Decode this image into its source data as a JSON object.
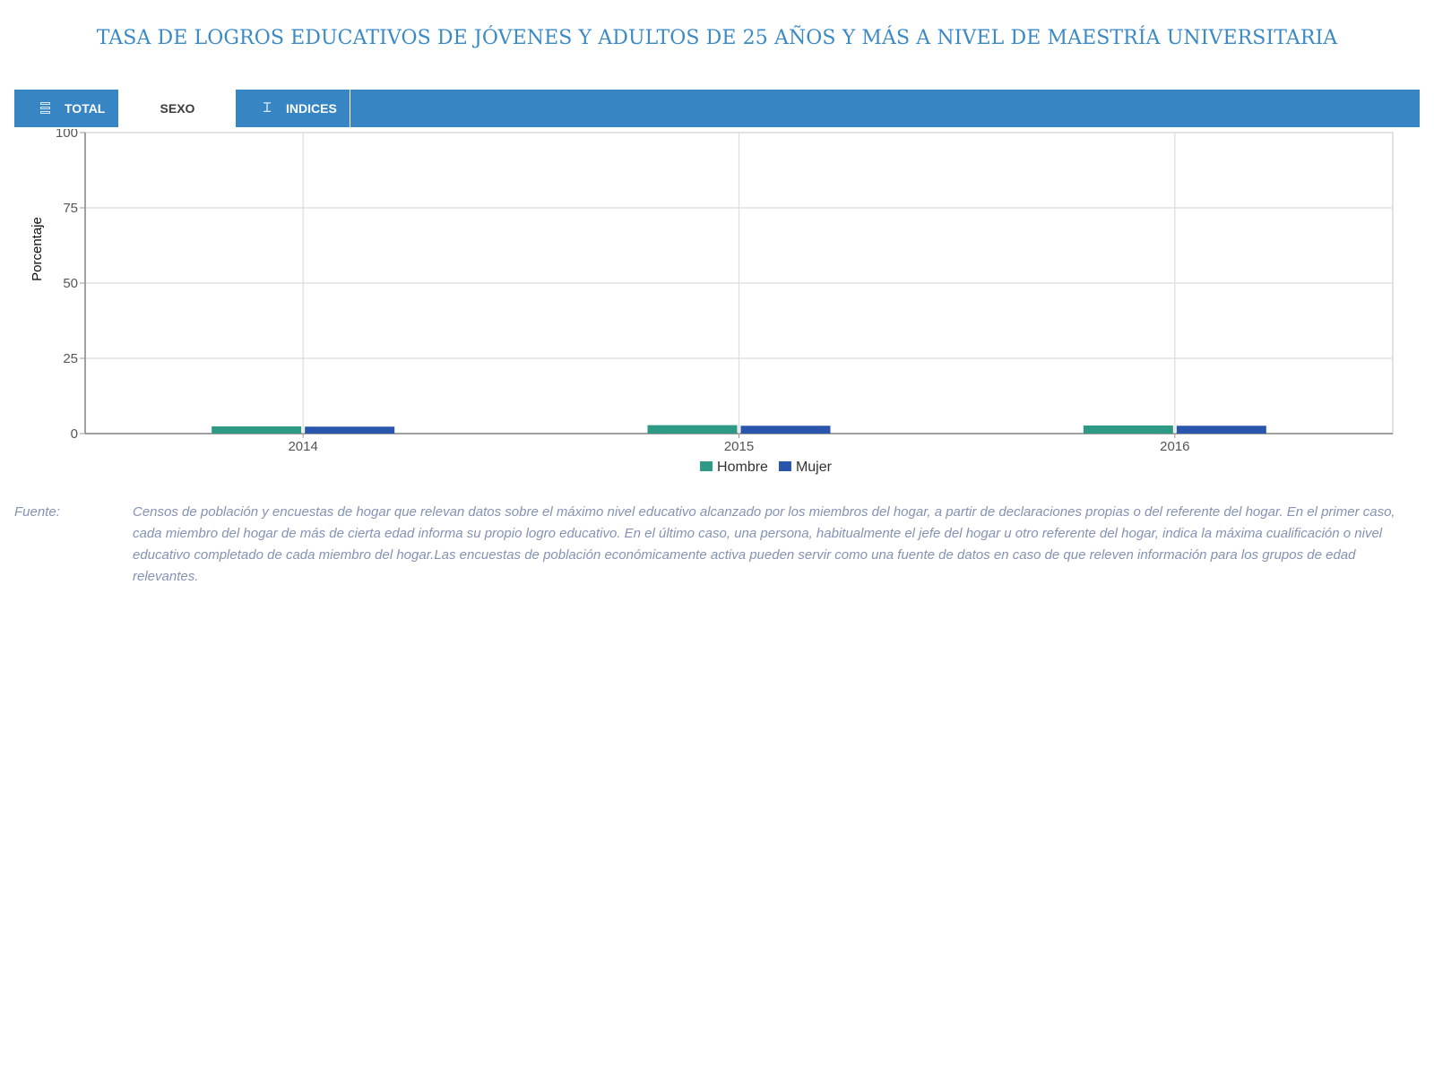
{
  "title": "TASA DE LOGROS EDUCATIVOS DE JÓVENES Y ADULTOS DE 25 AÑOS Y MÁS A NIVEL DE MAESTRÍA UNIVERSITARIA",
  "tabs": [
    {
      "label": "TOTAL",
      "icon": "bar-chart-icon",
      "active": false
    },
    {
      "label": "SEXO",
      "icon": "",
      "active": true
    },
    {
      "label": "INDICES",
      "icon": "text-cursor-icon",
      "active": false
    }
  ],
  "colors": {
    "accent": "#3785c3",
    "title": "#3a8ac6",
    "hombre": "#2e9a85",
    "mujer": "#2a55ad"
  },
  "chart_data": {
    "type": "bar",
    "categories": [
      "2014",
      "2015",
      "2016"
    ],
    "series": [
      {
        "name": "Hombre",
        "values": [
          2.4,
          2.8,
          2.7
        ]
      },
      {
        "name": "Mujer",
        "values": [
          2.3,
          2.6,
          2.6
        ]
      }
    ],
    "ylabel": "Porcentaje",
    "xlabel": "",
    "ylim": [
      0,
      100
    ],
    "yticks": [
      0,
      25,
      50,
      75,
      100
    ],
    "grid": true,
    "legend": "bottom-center"
  },
  "source": {
    "label": "Fuente:",
    "text": "Censos de población y encuestas de hogar que relevan datos sobre el máximo nivel educativo alcanzado por los miembros del hogar, a partir de declaraciones propias o del referente del hogar. En el primer caso, cada miembro del hogar de más de cierta edad informa su propio logro educativo. En el último caso, una persona, habitualmente el jefe del hogar u otro referente del hogar, indica la máxima cualificación o nivel educativo completado de cada miembro del hogar.Las encuestas de población económicamente activa pueden servir como una fuente de datos en caso de que releven información para los grupos de edad relevantes."
  }
}
